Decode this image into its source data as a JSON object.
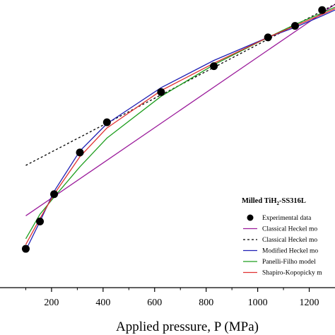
{
  "chart_data": {
    "type": "line",
    "title": "",
    "xlabel": "Applied pressure, P (MPa)",
    "ylabel": "",
    "xlim": [
      0,
      1300
    ],
    "ylim": [
      0,
      1
    ],
    "x_ticks": [
      200,
      400,
      600,
      800,
      1000,
      1200
    ],
    "x_tick_labels": [
      "200",
      "400",
      "600",
      "800",
      "1000",
      "1200"
    ],
    "grid": false,
    "legend_title": "Milled TiH",
    "legend_title_sub": "2",
    "legend_title_rest": "-SS316L",
    "legend_position": "bottom-right",
    "series": [
      {
        "name": "Experimental data",
        "style": "markers",
        "color": "#000000",
        "x": [
          100,
          155,
          210,
          310,
          415,
          625,
          830,
          1040,
          1145,
          1250
        ],
        "y": [
          0.135,
          0.23,
          0.325,
          0.47,
          0.575,
          0.68,
          0.77,
          0.87,
          0.91,
          0.965
        ]
      },
      {
        "name": "Classical Heckel mo",
        "style": "solid",
        "color": "#9b1c9b",
        "x": [
          100,
          1300
        ],
        "y": [
          0.25,
          0.985
        ]
      },
      {
        "name": "Classical Heckel mo",
        "style": "dotted",
        "color": "#000000",
        "x": [
          100,
          1300
        ],
        "y": [
          0.425,
          0.985
        ]
      },
      {
        "name": "Modified Heckel mo",
        "style": "solid",
        "color": "#1f1fb4",
        "x": [
          100,
          155,
          210,
          310,
          415,
          625,
          830,
          1040,
          1145,
          1250,
          1300
        ],
        "y": [
          0.13,
          0.23,
          0.335,
          0.475,
          0.57,
          0.695,
          0.79,
          0.87,
          0.905,
          0.945,
          0.965
        ]
      },
      {
        "name": "Panelli-Filho model",
        "style": "solid",
        "color": "#1e9e1e",
        "x": [
          100,
          155,
          210,
          310,
          415,
          625,
          830,
          1040,
          1145,
          1250,
          1300
        ],
        "y": [
          0.17,
          0.255,
          0.315,
          0.42,
          0.52,
          0.665,
          0.775,
          0.87,
          0.915,
          0.955,
          0.975
        ]
      },
      {
        "name": "Shapiro-Kopopicky m",
        "style": "solid",
        "color": "#e03030",
        "x": [
          100,
          155,
          210,
          310,
          415,
          625,
          830,
          1040,
          1145,
          1250,
          1300
        ],
        "y": [
          0.15,
          0.24,
          0.325,
          0.455,
          0.555,
          0.685,
          0.78,
          0.87,
          0.91,
          0.95,
          0.97
        ]
      }
    ]
  }
}
